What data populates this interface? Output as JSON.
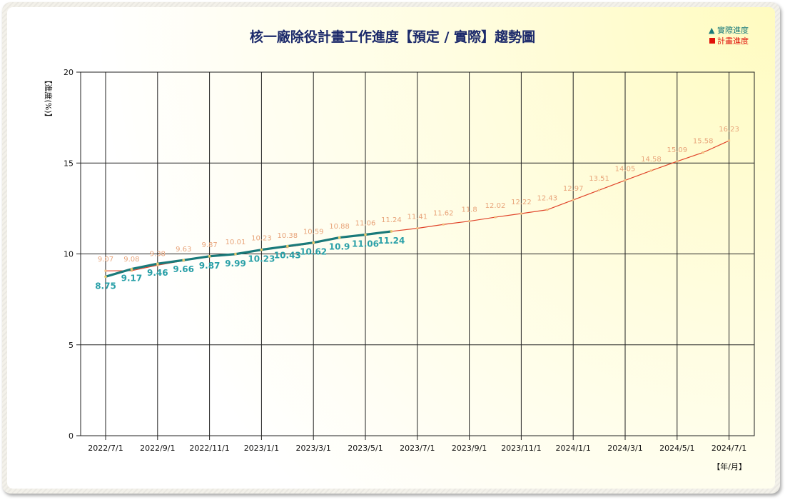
{
  "chart_data": {
    "type": "line",
    "title": "核一廠除役計畫工作進度【預定 / 實際】趨勢圖",
    "ylabel": "【進度(%)】",
    "xlabel": "【年/月】",
    "ylim": [
      0,
      20
    ],
    "yticks": [
      "0",
      "5",
      "10",
      "15",
      "20"
    ],
    "xtick_labels": [
      "2022/7/1",
      "2022/9/1",
      "2022/11/1",
      "2023/1/1",
      "2023/3/1",
      "2023/5/1",
      "2023/7/1",
      "2023/9/1",
      "2023/11/1",
      "2024/1/1",
      "2024/3/1",
      "2024/5/1",
      "2024/7/1"
    ],
    "grid": true,
    "legend_position": "top-right",
    "months": [
      "2022/7",
      "2022/8",
      "2022/9",
      "2022/10",
      "2022/11",
      "2022/12",
      "2023/1",
      "2023/2",
      "2023/3",
      "2023/4",
      "2023/5",
      "2023/6",
      "2023/7",
      "2023/8",
      "2023/9",
      "2023/10",
      "2023/11",
      "2023/12",
      "2024/1",
      "2024/2",
      "2024/3",
      "2024/4",
      "2024/5",
      "2024/6",
      "2024/7"
    ],
    "series": [
      {
        "name": "實際進度",
        "color": "#1a7a7a",
        "label_color": "#2aa0a8",
        "marker": "triangle",
        "values": [
          8.75,
          9.17,
          9.46,
          9.66,
          9.87,
          9.99,
          10.23,
          10.43,
          10.62,
          10.9,
          11.06,
          11.24
        ]
      },
      {
        "name": "計畫進度",
        "color": "#e0442a",
        "label_color": "#e8a47a",
        "marker": "square",
        "values": [
          9.07,
          9.08,
          9.38,
          9.63,
          9.87,
          10.01,
          10.23,
          10.38,
          10.59,
          10.88,
          11.06,
          11.24,
          11.41,
          11.62,
          11.8,
          12.02,
          12.22,
          12.43,
          12.97,
          13.51,
          14.05,
          14.58,
          15.09,
          15.58,
          16.23
        ]
      }
    ]
  }
}
